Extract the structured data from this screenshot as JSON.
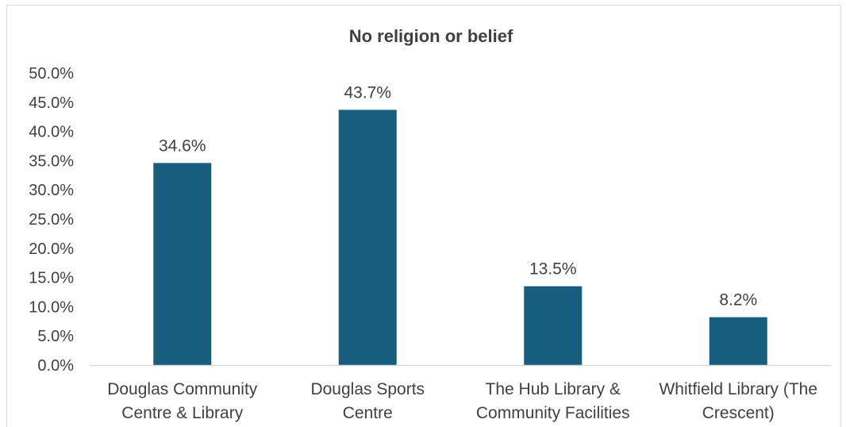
{
  "chart_data": {
    "type": "bar",
    "title": "No religion or belief",
    "xlabel": "",
    "ylabel": "",
    "categories": [
      "Douglas Community Centre & Library",
      "Douglas Sports Centre",
      "The Hub Library & Community Facilities",
      "Whitfield Library (The Crescent)"
    ],
    "category_lines": [
      [
        "Douglas Community",
        "Centre & Library"
      ],
      [
        "Douglas Sports",
        "Centre"
      ],
      [
        "The Hub Library &",
        "Community Facilities"
      ],
      [
        "Whitfield Library (The",
        "Crescent)"
      ]
    ],
    "values": [
      34.6,
      43.7,
      13.5,
      8.2
    ],
    "data_labels": [
      "34.6%",
      "43.7%",
      "13.5%",
      "8.2%"
    ],
    "ylim": [
      0,
      50
    ],
    "yticks": [
      0,
      5,
      10,
      15,
      20,
      25,
      30,
      35,
      40,
      45,
      50
    ],
    "ytick_labels": [
      "0.0%",
      "5.0%",
      "10.0%",
      "15.0%",
      "20.0%",
      "25.0%",
      "30.0%",
      "35.0%",
      "40.0%",
      "45.0%",
      "50.0%"
    ],
    "grid": false,
    "legend": "none",
    "bar_color": "#175e7e",
    "axis_color": "#d9d9d9"
  }
}
